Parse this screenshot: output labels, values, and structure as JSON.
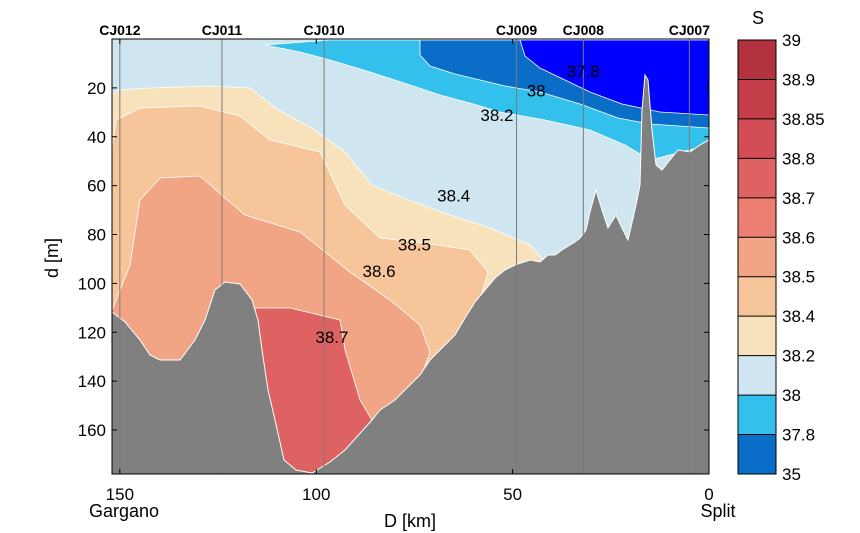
{
  "chart_data": {
    "type": "contour",
    "xlabel": "D [km]",
    "ylabel": "d [m]",
    "xlim": [
      152,
      0
    ],
    "ylim": [
      0,
      178
    ],
    "x_ticks": [
      "150",
      "100",
      "50",
      "0"
    ],
    "y_ticks": [
      "20",
      "40",
      "60",
      "80",
      "100",
      "120",
      "140",
      "160"
    ],
    "end_labels": {
      "left": "Gargano",
      "right": "Split"
    },
    "stations": [
      {
        "name": "CJ012",
        "x": 150
      },
      {
        "name": "CJ011",
        "x": 124
      },
      {
        "name": "CJ010",
        "x": 98
      },
      {
        "name": "CJ009",
        "x": 49
      },
      {
        "name": "CJ008",
        "x": 32
      },
      {
        "name": "CJ007",
        "x": 5
      }
    ],
    "contour_labels": [
      {
        "text": "37.8",
        "x": 32,
        "y": 13
      },
      {
        "text": "38",
        "x": 44,
        "y": 21
      },
      {
        "text": "38.2",
        "x": 54,
        "y": 31
      },
      {
        "text": "38.4",
        "x": 65,
        "y": 64
      },
      {
        "text": "38.5",
        "x": 75,
        "y": 84
      },
      {
        "text": "38.6",
        "x": 84,
        "y": 95
      },
      {
        "text": "38.7",
        "x": 96,
        "y": 122
      }
    ],
    "colorbar": {
      "title": "S",
      "levels": [
        "39",
        "38.9",
        "38.85",
        "38.8",
        "38.7",
        "38.6",
        "38.5",
        "38.4",
        "38.2",
        "38",
        "37.8",
        "35"
      ],
      "colors": [
        "#b23240",
        "#c43e4a",
        "#d24d55",
        "#de6262",
        "#ec7f72",
        "#f2a585",
        "#f6c59a",
        "#f7e2bc",
        "#cfe6f0",
        "#34c0ec",
        "#0a6ec8",
        "#0000ff"
      ]
    },
    "bathymetry_color": "#808080"
  }
}
